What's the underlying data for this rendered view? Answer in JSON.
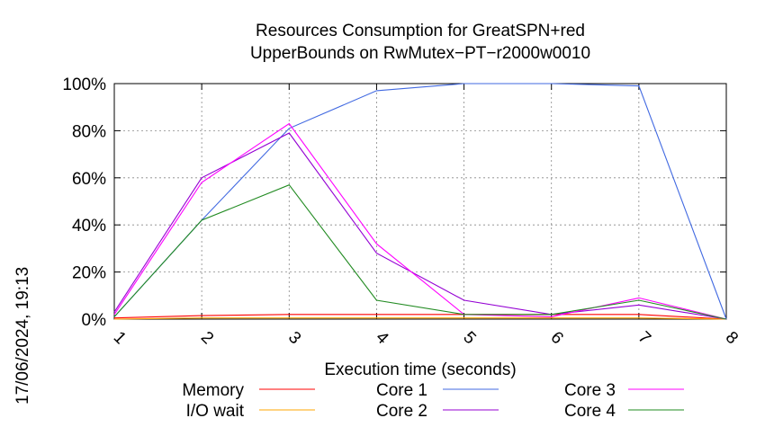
{
  "chart_data": {
    "type": "line",
    "title_lines": [
      "Resources Consumption for GreatSPN+red",
      "UpperBounds on RwMutex−PT−r2000w0010"
    ],
    "xlabel": "Execution time (seconds)",
    "ylabel": "",
    "xlim": [
      1,
      8
    ],
    "ylim": [
      0,
      100
    ],
    "x_ticks": [
      "1",
      "2",
      "3",
      "4",
      "5",
      "6",
      "7",
      "8"
    ],
    "y_ticks": [
      "0%",
      "20%",
      "40%",
      "60%",
      "80%",
      "100%"
    ],
    "grid": true,
    "legend_position": "bottom",
    "x": [
      1,
      2,
      3,
      4,
      5,
      6,
      7,
      8
    ],
    "series": [
      {
        "name": "Memory",
        "color": "#ff0000",
        "values": [
          0.5,
          1.5,
          2,
          2,
          2,
          2,
          2,
          0
        ]
      },
      {
        "name": "I/O wait",
        "color": "#ffa500",
        "values": [
          0,
          0.5,
          0.5,
          0.5,
          0.5,
          0.5,
          0.5,
          0
        ]
      },
      {
        "name": "Core 1",
        "color": "#4169e1",
        "values": [
          1,
          42,
          81,
          97,
          100,
          100,
          99,
          0
        ]
      },
      {
        "name": "Core 2",
        "color": "#9400d3",
        "values": [
          3,
          60,
          79,
          28,
          8,
          2,
          6,
          0
        ]
      },
      {
        "name": "Core 3",
        "color": "#ff00ff",
        "values": [
          2,
          58,
          83,
          32,
          2,
          1,
          9,
          0
        ]
      },
      {
        "name": "Core 4",
        "color": "#228b22",
        "values": [
          1,
          42,
          57,
          8,
          2,
          2,
          8,
          0
        ]
      }
    ]
  },
  "timestamp": "17/06/2024, 19:13"
}
